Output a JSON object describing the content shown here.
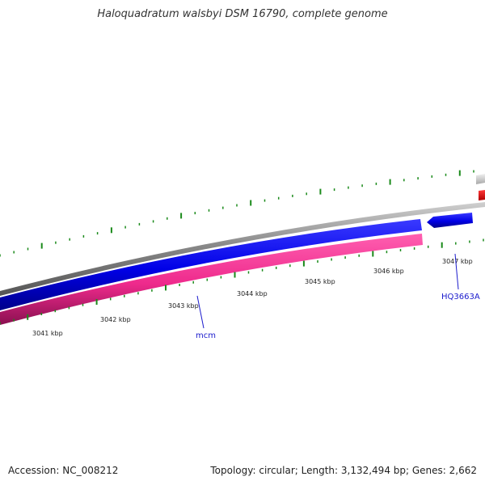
{
  "title": "Haloquadratum walsbyi DSM 16790, complete genome",
  "footer": {
    "accession": "Accession: NC_008212",
    "summary": "Topology: circular; Length: 3,132,494 bp; Genes: 2,662"
  },
  "scale_labels": [
    {
      "label": "3041 kbp"
    },
    {
      "label": "3042 kbp"
    },
    {
      "label": "3043 kbp"
    },
    {
      "label": "3044 kbp"
    },
    {
      "label": "3045 kbp"
    },
    {
      "label": "3046 kbp"
    },
    {
      "label": "3047 kbp"
    }
  ],
  "genes": [
    {
      "name": "mcm"
    },
    {
      "name": "HQ3663A"
    }
  ],
  "colors": {
    "backbone": "#7f7f7f",
    "forward_strand": "#0000ee",
    "reverse_strand": "#ee2a8c",
    "tick": "#1a8a1a",
    "gene_label": "#1a1acc",
    "partial_grey": "#c8c8c8",
    "partial_red": "#ee0000"
  }
}
